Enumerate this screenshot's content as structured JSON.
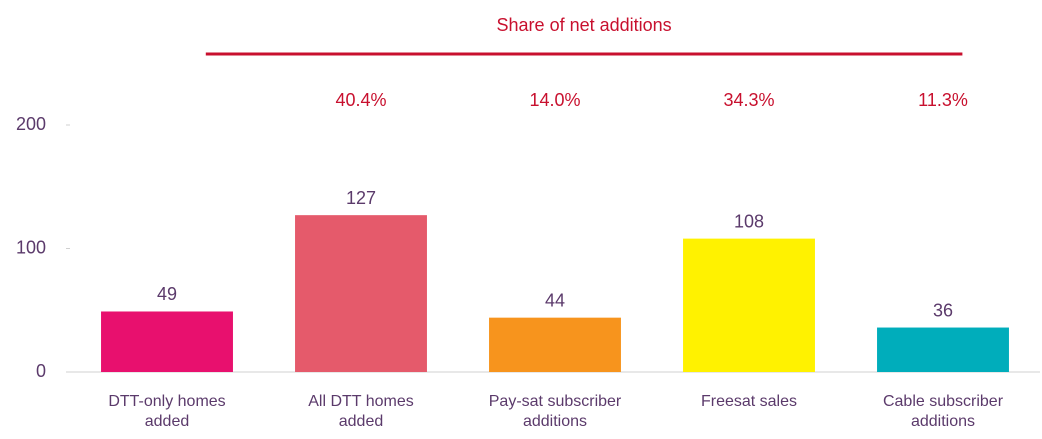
{
  "chart_data": {
    "type": "bar",
    "categories": [
      "DTT-only homes added",
      "All DTT homes added",
      "Pay-sat subscriber additions",
      "Freesat sales",
      "Cable subscriber additions"
    ],
    "values": [
      49,
      127,
      44,
      108,
      36
    ],
    "colors": [
      "#e8106e",
      "#e55a6b",
      "#f7941d",
      "#fff200",
      "#00adbb"
    ],
    "ylim": [
      0,
      200
    ],
    "yticks": [
      0,
      100,
      200
    ],
    "grid": false,
    "share": {
      "title": "Share of net additions",
      "color": "#c8102e",
      "values": [
        40.4,
        14.0,
        34.3,
        11.3
      ],
      "value_labels": [
        "40.4%",
        "14.0%",
        "34.3%",
        "11.3%"
      ]
    }
  }
}
